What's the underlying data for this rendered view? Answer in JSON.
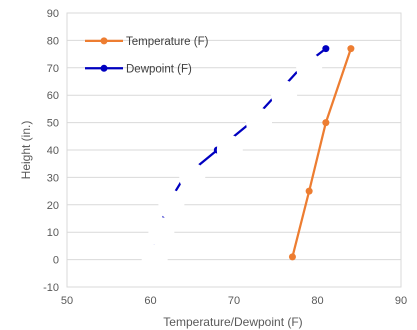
{
  "chart_data": {
    "type": "line",
    "title": "",
    "xlabel": "Temperature/Dewpoint  (F)",
    "ylabel": "Height (in.)",
    "xlim": [
      50,
      90
    ],
    "ylim": [
      -10,
      90
    ],
    "xticks": [
      "50",
      "60",
      "70",
      "80",
      "90"
    ],
    "yticks": [
      "-10",
      "0",
      "10",
      "20",
      "30",
      "40",
      "50",
      "60",
      "70",
      "80",
      "90"
    ],
    "grid": "horizontal",
    "legend_position": "top-left",
    "series": [
      {
        "name": "Temperature (F)",
        "color": "#ed7d31",
        "points": [
          [
            77,
            1
          ],
          [
            79,
            25
          ],
          [
            81,
            50
          ],
          [
            84,
            77
          ]
        ]
      },
      {
        "name": "Dewpoint (F)",
        "color": "#0000c0",
        "points": [
          [
            60,
            0
          ],
          [
            61,
            10
          ],
          [
            62,
            20
          ],
          [
            64,
            30
          ],
          [
            68,
            40
          ],
          [
            72,
            50
          ],
          [
            75,
            60
          ],
          [
            78,
            70
          ],
          [
            81,
            77
          ]
        ]
      }
    ],
    "white_overlay_points": [
      [
        60.5,
        0
      ],
      [
        61.3,
        10
      ],
      [
        62.5,
        20
      ],
      [
        65,
        30
      ],
      [
        69.5,
        40
      ],
      [
        73,
        50
      ],
      [
        76,
        60
      ],
      [
        79,
        70
      ]
    ]
  }
}
